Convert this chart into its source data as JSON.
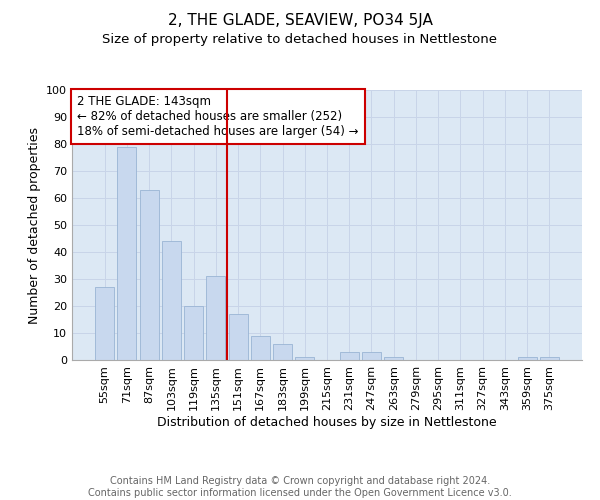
{
  "title": "2, THE GLADE, SEAVIEW, PO34 5JA",
  "subtitle": "Size of property relative to detached houses in Nettlestone",
  "xlabel": "Distribution of detached houses by size in Nettlestone",
  "ylabel": "Number of detached properties",
  "categories": [
    "55sqm",
    "71sqm",
    "87sqm",
    "103sqm",
    "119sqm",
    "135sqm",
    "151sqm",
    "167sqm",
    "183sqm",
    "199sqm",
    "215sqm",
    "231sqm",
    "247sqm",
    "263sqm",
    "279sqm",
    "295sqm",
    "311sqm",
    "327sqm",
    "343sqm",
    "359sqm",
    "375sqm"
  ],
  "values": [
    27,
    79,
    63,
    44,
    20,
    31,
    17,
    9,
    6,
    1,
    0,
    3,
    3,
    1,
    0,
    0,
    0,
    0,
    0,
    1,
    1
  ],
  "bar_color": "#c8d8ee",
  "bar_edge_color": "#9ab4d4",
  "vline_x_index": 6,
  "vline_color": "#cc0000",
  "annotation_text": "2 THE GLADE: 143sqm\n← 82% of detached houses are smaller (252)\n18% of semi-detached houses are larger (54) →",
  "annotation_box_facecolor": "#ffffff",
  "annotation_box_edgecolor": "#cc0000",
  "ylim": [
    0,
    100
  ],
  "yticks": [
    0,
    10,
    20,
    30,
    40,
    50,
    60,
    70,
    80,
    90,
    100
  ],
  "grid_color": "#c8d4e8",
  "background_color": "#dce8f4",
  "footer_text": "Contains HM Land Registry data © Crown copyright and database right 2024.\nContains public sector information licensed under the Open Government Licence v3.0.",
  "title_fontsize": 11,
  "subtitle_fontsize": 9.5,
  "xlabel_fontsize": 9,
  "ylabel_fontsize": 9,
  "tick_fontsize": 8,
  "annotation_fontsize": 8.5,
  "footer_fontsize": 7
}
